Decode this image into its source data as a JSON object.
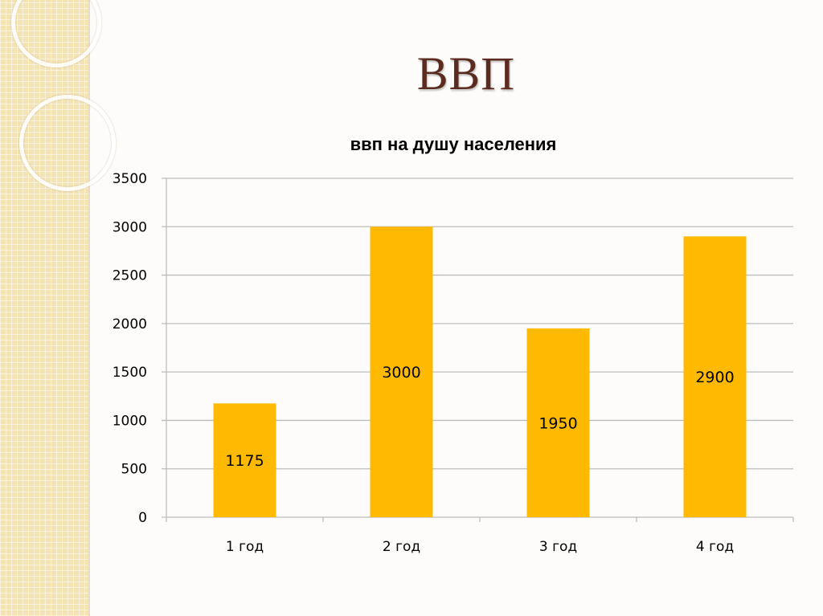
{
  "slide": {
    "title": "ВВП"
  },
  "chart_data": {
    "type": "bar",
    "title": "ввп  на душу населения",
    "categories": [
      "1 год",
      "2 год",
      "3 год",
      "4 год"
    ],
    "values": [
      1175,
      3000,
      1950,
      2900
    ],
    "data_labels": [
      "1175",
      "3000",
      "1950",
      "2900"
    ],
    "ylim": [
      0,
      3500
    ],
    "yticks": [
      0,
      500,
      1000,
      1500,
      2000,
      2500,
      3000,
      3500
    ],
    "grid": true,
    "legend": "none",
    "bar_color": "#ffba00",
    "grid_color": "#bdbdbd"
  }
}
